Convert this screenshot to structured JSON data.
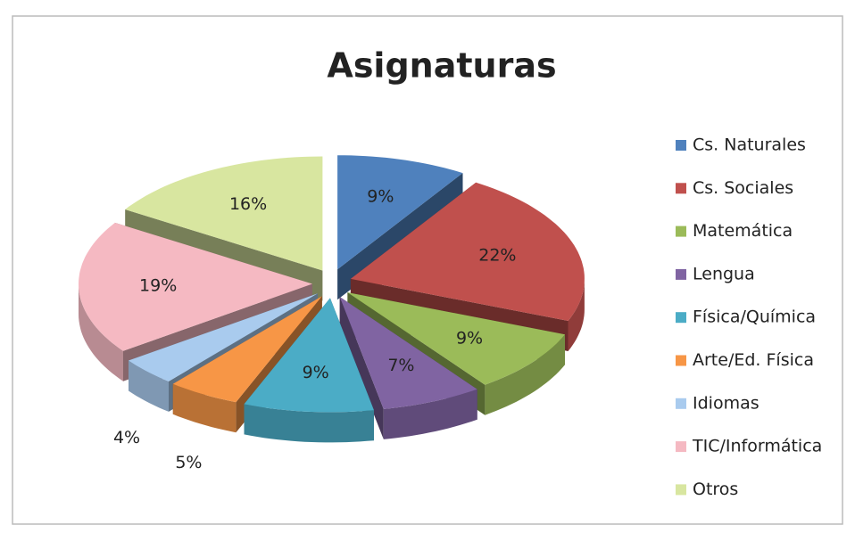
{
  "chart_data": {
    "type": "pie3d",
    "title": "Asignaturas",
    "categories": [
      "Cs. Naturales",
      "Cs. Sociales",
      "Matemática",
      "Lengua",
      "Física/Química",
      "Arte/Ed. Física",
      "Idiomas",
      "TIC/Informática",
      "Otros"
    ],
    "values": [
      9,
      22,
      9,
      7,
      9,
      5,
      4,
      19,
      16
    ],
    "value_labels": [
      "9%",
      "22%",
      "9%",
      "7%",
      "9%",
      "5%",
      "4%",
      "19%",
      "16%"
    ],
    "colors": [
      "#4f81bd",
      "#c0504d",
      "#9bbb59",
      "#8064a2",
      "#4bacc6",
      "#f79646",
      "#a9cbee",
      "#f5b9c2",
      "#d8e6a0"
    ],
    "legend": "right"
  }
}
